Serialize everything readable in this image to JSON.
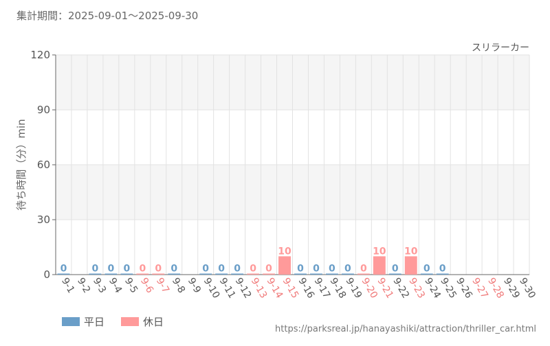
{
  "header": {
    "period": "集計期間：2025-09-01～2025-09-30"
  },
  "chart_data": {
    "type": "bar",
    "title": "スリラーカー",
    "ylabel": "待ち時間（分）min",
    "xlabel": "",
    "ylim": [
      0,
      120
    ],
    "yticks": [
      0,
      30,
      60,
      90,
      120
    ],
    "grid": true,
    "categories": [
      "9-1",
      "9-2",
      "9-3",
      "9-4",
      "9-5",
      "9-6",
      "9-7",
      "9-8",
      "9-9",
      "9-10",
      "9-11",
      "9-12",
      "9-13",
      "9-14",
      "9-15",
      "9-16",
      "9-17",
      "9-18",
      "9-19",
      "9-20",
      "9-21",
      "9-22",
      "9-23",
      "9-24",
      "9-25",
      "9-26",
      "9-27",
      "9-28",
      "9-29",
      "9-30"
    ],
    "day_type": [
      "weekday",
      "weekday",
      "weekday",
      "weekday",
      "weekday",
      "holiday",
      "holiday",
      "weekday",
      "weekday",
      "weekday",
      "weekday",
      "weekday",
      "holiday",
      "holiday",
      "holiday",
      "weekday",
      "weekday",
      "weekday",
      "weekday",
      "holiday",
      "holiday",
      "weekday",
      "holiday",
      "weekday",
      "weekday",
      "weekday",
      "holiday",
      "holiday",
      "weekday",
      "weekday"
    ],
    "values": [
      0,
      null,
      0,
      0,
      0,
      0,
      0,
      0,
      null,
      0,
      0,
      0,
      0,
      0,
      10,
      0,
      0,
      0,
      0,
      0,
      10,
      0,
      10,
      0,
      0,
      null,
      null,
      null,
      null,
      null
    ],
    "series": [
      {
        "name": "平日",
        "color": "#6a9ec8"
      },
      {
        "name": "休日",
        "color": "#ff9a9a"
      }
    ],
    "legend_position": "bottom-left",
    "colors": {
      "weekday_label": "#555555",
      "holiday_label": "#f07a7a",
      "band": "#f5f5f5",
      "grid": "#e2e2e2",
      "axis": "#666666"
    }
  },
  "footer": {
    "source": "https://parksreal.jp/hanayashiki/attraction/thriller_car.html"
  }
}
